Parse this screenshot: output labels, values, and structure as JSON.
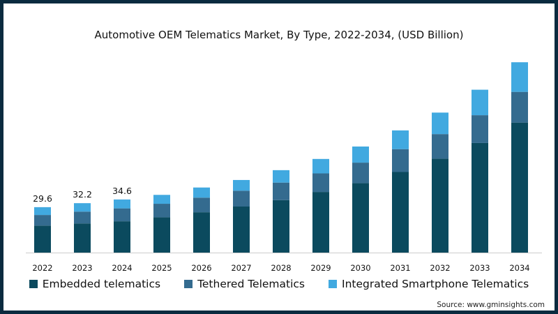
{
  "chart_data": {
    "type": "bar",
    "stacked": true,
    "title": "Automotive OEM Telematics Market, By Type, 2022-2034, (USD Billion)",
    "categories": [
      "2022",
      "2023",
      "2024",
      "2025",
      "2026",
      "2027",
      "2028",
      "2029",
      "2030",
      "2031",
      "2032",
      "2033",
      "2034"
    ],
    "series": [
      {
        "name": "Embedded telematics",
        "color": "#0b4a5e",
        "values": [
          17.6,
          19.0,
          20.4,
          23.0,
          26.3,
          30.0,
          34.2,
          39.5,
          45.2,
          52.5,
          61.2,
          71.4,
          84.7
        ]
      },
      {
        "name": "Tethered Telematics",
        "color": "#346b8f",
        "values": [
          6.9,
          7.7,
          8.4,
          8.8,
          9.5,
          10.3,
          11.4,
          12.1,
          13.4,
          14.9,
          16.0,
          18.1,
          20.0
        ]
      },
      {
        "name": "Integrated Smartphone Telematics",
        "color": "#41a9e0",
        "values": [
          5.1,
          5.5,
          5.8,
          5.8,
          6.6,
          7.0,
          8.1,
          9.4,
          10.5,
          12.2,
          14.0,
          16.6,
          19.3
        ]
      }
    ],
    "data_labels": {
      "2022": "29.6",
      "2023": "32.2",
      "2024": "34.6"
    },
    "ylim": [
      0,
      135
    ],
    "xlabel": "",
    "ylabel": "",
    "grid": false,
    "legend_position": "bottom",
    "axis_color": "#cccccc"
  },
  "source": "Source: www.gminsights.com"
}
